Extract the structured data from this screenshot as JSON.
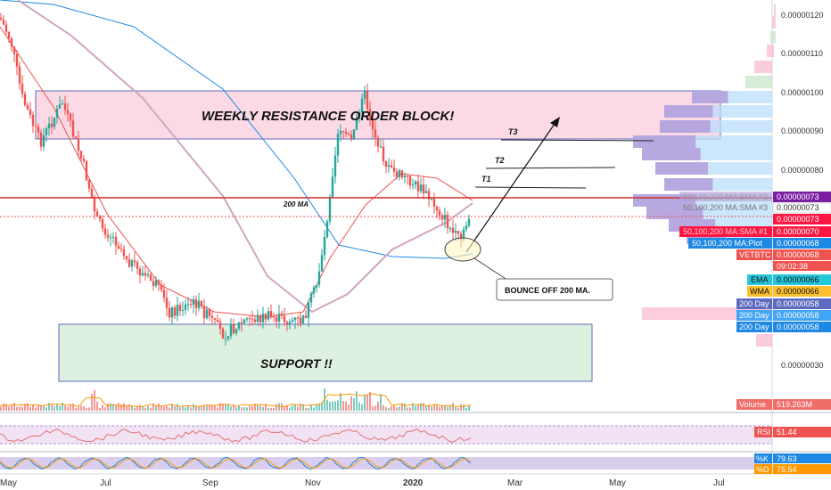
{
  "chart_data": {
    "type": "candlestick",
    "title": "",
    "symbol": "VETBTC",
    "x_ticks": [
      "May",
      "Jul",
      "Sep",
      "Nov",
      "2020",
      "Mar",
      "May",
      "Jul"
    ],
    "y_ticks": [
      "0.00000030",
      "0.00000068",
      "0.00000080",
      "0.00000090",
      "0.00000100",
      "0.00000110",
      "0.00000120"
    ],
    "y_tick_values": [
      30,
      68,
      80,
      90,
      100,
      110,
      120
    ],
    "y_scale": "log",
    "y_range": [
      2.3e-07,
      1.25e-06
    ],
    "annotations": {
      "resistance_label": "WEEKLY RESISTANCE ORDER BLOCK!",
      "support_label": "SUPPORT !!",
      "ma_label": "200 MA",
      "bounce_label": "BOUNCE OFF 200 MA.",
      "targets": [
        "T1",
        "T2",
        "T3"
      ]
    },
    "price_labels": [
      {
        "name": "50,100,200 MA:SMA #2",
        "value": "0.00000073",
        "color": "#7b1fa2"
      },
      {
        "name": "50,100,200 MA:SMA #3",
        "value": "0.00000073",
        "color": "#9e9e9e"
      },
      {
        "name": "",
        "value": "0.00000073",
        "color": "#ff1744"
      },
      {
        "name": "50,100,200 MA:SMA #1",
        "value": "0.00000070",
        "color": "#ff1744"
      },
      {
        "name": "50,100,200 MA:Plot",
        "value": "0.00000068",
        "color": "#1e88e5"
      },
      {
        "name": "VETBTC",
        "value": "0.00000068",
        "color": "#ef5350"
      },
      {
        "name": "",
        "value": "09:02:38",
        "color": "#ef5350"
      },
      {
        "name": "EMA",
        "value": "0.00000066",
        "color": "#26c6da"
      },
      {
        "name": "WMA",
        "value": "0.00000066",
        "color": "#fbc02d"
      },
      {
        "name": "200 Day",
        "value": "0.00000058",
        "color": "#5c6bc0"
      },
      {
        "name": "200 Day",
        "value": "0.00000058",
        "color": "#42a5f5"
      },
      {
        "name": "200 Day",
        "value": "0.00000058",
        "color": "#1e88e5"
      }
    ],
    "volume": {
      "label": "Volume",
      "value": "519.263M"
    },
    "rsi": {
      "label": "RSI",
      "value": "51.44"
    },
    "stoch": {
      "k_label": "%K",
      "k_value": "79.63",
      "d_label": "%D",
      "d_value": "75.54"
    },
    "colors": {
      "up": "#26a69a",
      "down": "#ef5350",
      "resistance_fill": "#f8bbd0",
      "support_fill": "#c8e6c9",
      "ma200": "#1e88e5",
      "ma50": "#ef5350",
      "ma100": "#d1a6c4"
    }
  }
}
